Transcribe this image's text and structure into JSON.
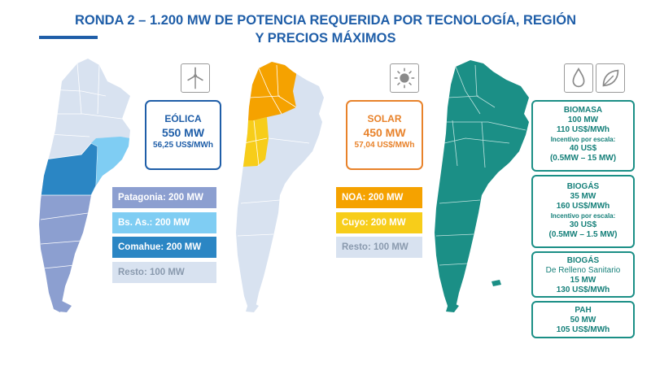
{
  "title": {
    "line1": "RONDA 2 – 1.200 MW DE POTENCIA REQUERIDA POR TECNOLOGÍA, REGIÓN",
    "line2": "Y PRECIOS MÁXIMOS"
  },
  "icons": [
    "wind-turbine-icon",
    "sun-icon",
    "drop-icon",
    "leaf-icon"
  ],
  "colors": {
    "eolica": "#1f5ea8",
    "solar": "#e8822a",
    "patagonia": "#8c9fd0",
    "bsas": "#7fcdf3",
    "comahue": "#2b86c4",
    "resto": "#d8e2f0",
    "noa": "#f5a200",
    "cuyo": "#f7cd1a",
    "biomass": "#1b8f86"
  },
  "eolica": {
    "name": "EÓLICA",
    "mw": "550 MW",
    "price": "56,25 US$/MWh",
    "legend": [
      "Patagonia: 200 MW",
      "Bs. As.: 200 MW",
      "Comahue: 200 MW",
      "Resto: 100 MW"
    ]
  },
  "solar": {
    "name": "SOLAR",
    "mw": "450 MW",
    "price": "57,04 US$/MWh",
    "legend": [
      "NOA: 200 MW",
      "Cuyo: 200 MW",
      "Resto: 100 MW"
    ]
  },
  "bio": {
    "biomasa": {
      "name": "BIOMASA",
      "mw": "100 MW",
      "price": "110 US$/MWh",
      "incentive_label": "Incentivo por escala:",
      "incentive_value": "40 US$",
      "range": "(0.5MW – 15 MW)"
    },
    "biogas": {
      "name": "BIOGÁS",
      "mw": "35 MW",
      "price": "160 US$/MWh",
      "incentive_label": "Incentivo por escala:",
      "incentive_value": "30 US$",
      "range": "(0.5MW – 1.5 MW)"
    },
    "biogas_rs": {
      "name": "BIOGÁS",
      "subtitle": "De Relleno Sanitario",
      "mw": "15 MW",
      "price": "130 US$/MWh"
    },
    "pah": {
      "name": "PAH",
      "mw": "50 MW",
      "price": "105 US$/MWh"
    }
  }
}
